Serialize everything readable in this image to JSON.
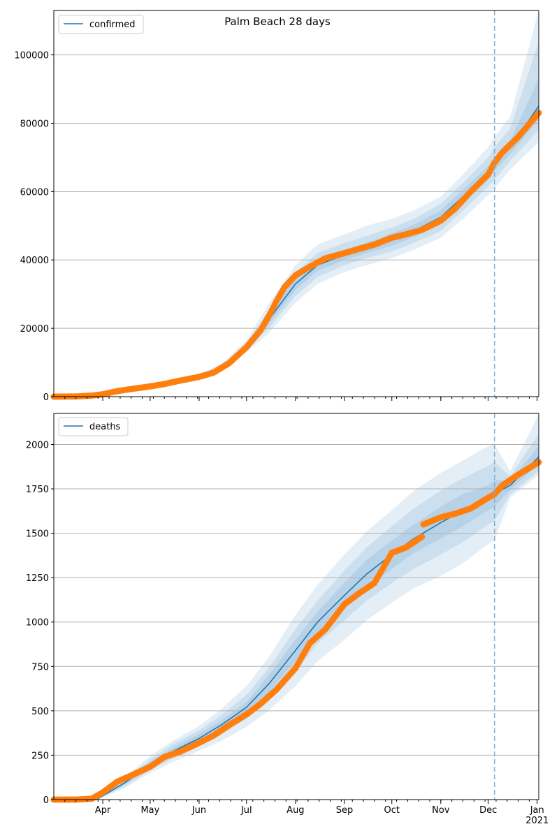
{
  "chart_data": [
    {
      "type": "line",
      "title": "Palm Beach 28 days",
      "legend": {
        "placement": "top-left",
        "entries": [
          "confirmed"
        ]
      },
      "grid": "horizontal",
      "xlim": [
        "2020-03-01",
        "2021-01-02"
      ],
      "ylim": [
        0,
        113000
      ],
      "yticks": [
        0,
        20000,
        40000,
        60000,
        80000,
        100000
      ],
      "xticks": [
        {
          "date": "2020-04-01",
          "label": "Apr"
        },
        {
          "date": "2020-05-01",
          "label": "May"
        },
        {
          "date": "2020-06-01",
          "label": "Jun"
        },
        {
          "date": "2020-07-01",
          "label": "Jul"
        },
        {
          "date": "2020-08-01",
          "label": "Aug"
        },
        {
          "date": "2020-09-01",
          "label": "Sep"
        },
        {
          "date": "2020-10-01",
          "label": "Oct"
        },
        {
          "date": "2020-11-01",
          "label": "Nov"
        },
        {
          "date": "2020-12-01",
          "label": "Dec"
        },
        {
          "date": "2021-01-01",
          "label": "Jan\n2021"
        }
      ],
      "forecast_start": "2020-12-05",
      "model": {
        "x": [
          "2020-03-01",
          "2020-03-29",
          "2020-04-15",
          "2020-05-01",
          "2020-05-15",
          "2020-06-01",
          "2020-06-15",
          "2020-07-01",
          "2020-07-15",
          "2020-08-01",
          "2020-08-15",
          "2020-09-01",
          "2020-09-15",
          "2020-10-01",
          "2020-10-15",
          "2020-11-01",
          "2020-11-15",
          "2020-12-01",
          "2020-12-05",
          "2020-12-15",
          "2021-01-02"
        ],
        "y": [
          0,
          200,
          1800,
          3100,
          4400,
          5800,
          8500,
          14500,
          22500,
          33000,
          38500,
          41500,
          43500,
          46000,
          48500,
          52500,
          58500,
          65500,
          68000,
          73000,
          85000
        ],
        "bands": [
          {
            "lower": [
              0,
              150,
              1500,
              2800,
              4000,
              5200,
              7700,
              13000,
              18500,
              27500,
              33000,
              36500,
              38500,
              40500,
              43000,
              46500,
              52000,
              59000,
              61000,
              66500,
              74500
            ],
            "upper": [
              0,
              300,
              2100,
              3500,
              5000,
              6600,
              9600,
              16500,
              27000,
              38500,
              44500,
              47500,
              50000,
              52000,
              54500,
              58500,
              65000,
              73000,
              76000,
              82000,
              113000
            ]
          },
          {
            "lower": [
              0,
              170,
              1600,
              2900,
              4150,
              5450,
              8000,
              13700,
              20000,
              29500,
              35000,
              38500,
              40500,
              42500,
              45000,
              48500,
              54500,
              61500,
              63500,
              69000,
              78000
            ],
            "upper": [
              0,
              260,
              2000,
              3300,
              4750,
              6300,
              9200,
              15600,
              25200,
              36500,
              42000,
              45000,
              47000,
              49500,
              52000,
              56500,
              62500,
              70000,
              73000,
              78500,
              104000
            ]
          },
          {
            "lower": [
              0,
              185,
              1700,
              3000,
              4250,
              5600,
              8200,
              14100,
              21200,
              31200,
              36800,
              40000,
              42000,
              44200,
              46700,
              50500,
              56500,
              63500,
              66000,
              71000,
              81000
            ],
            "upper": [
              0,
              230,
              1900,
              3200,
              4550,
              6000,
              8800,
              14900,
              23800,
              34800,
              40200,
              43000,
              45000,
              47800,
              50300,
              54500,
              60500,
              67500,
              70000,
              75000,
              93000
            ]
          }
        ]
      },
      "observed": {
        "x": [
          "2020-03-01",
          "2020-03-15",
          "2020-03-25",
          "2020-04-01",
          "2020-04-10",
          "2020-04-20",
          "2020-05-01",
          "2020-05-10",
          "2020-05-20",
          "2020-06-01",
          "2020-06-10",
          "2020-06-20",
          "2020-07-01",
          "2020-07-10",
          "2020-07-15",
          "2020-07-20",
          "2020-07-25",
          "2020-08-01",
          "2020-08-10",
          "2020-08-20",
          "2020-09-01",
          "2020-09-10",
          "2020-09-20",
          "2020-10-01",
          "2020-10-10",
          "2020-10-20",
          "2020-11-01",
          "2020-11-10",
          "2020-11-20",
          "2020-12-01",
          "2020-12-05",
          "2020-12-10",
          "2020-12-20",
          "2021-01-02"
        ],
        "y": [
          0,
          50,
          300,
          700,
          1600,
          2300,
          3000,
          3700,
          4700,
          5800,
          7000,
          9800,
          14500,
          19500,
          23500,
          28000,
          32000,
          35500,
          38000,
          40500,
          42000,
          43200,
          44500,
          46500,
          47500,
          48800,
          51500,
          55000,
          60000,
          65000,
          68500,
          71500,
          76000,
          83000
        ]
      }
    },
    {
      "type": "line",
      "legend": {
        "placement": "top-left",
        "entries": [
          "deaths"
        ]
      },
      "grid": "horizontal",
      "xlim": [
        "2020-03-01",
        "2021-01-02"
      ],
      "ylim": [
        0,
        2175
      ],
      "yticks": [
        0,
        250,
        500,
        750,
        1000,
        1250,
        1500,
        1750,
        2000
      ],
      "forecast_start": "2020-12-05",
      "model": {
        "x": [
          "2020-03-01",
          "2020-03-29",
          "2020-04-15",
          "2020-05-01",
          "2020-05-15",
          "2020-06-01",
          "2020-06-15",
          "2020-07-01",
          "2020-07-15",
          "2020-08-01",
          "2020-08-15",
          "2020-09-01",
          "2020-09-15",
          "2020-10-01",
          "2020-10-15",
          "2020-11-01",
          "2020-11-15",
          "2020-12-01",
          "2020-12-05",
          "2020-12-15",
          "2021-01-02"
        ],
        "y": [
          0,
          5,
          95,
          195,
          270,
          345,
          420,
          520,
          650,
          840,
          1000,
          1150,
          1270,
          1380,
          1470,
          1560,
          1630,
          1700,
          1725,
          1770,
          1930
        ],
        "bands": [
          {
            "lower": [
              0,
              2,
              65,
              150,
              210,
              275,
              330,
              410,
              500,
              640,
              780,
              900,
              1010,
              1110,
              1190,
              1260,
              1330,
              1440,
              1460,
              1700,
              1830
            ],
            "upper": [
              0,
              8,
              125,
              245,
              330,
              415,
              510,
              640,
              800,
              1040,
              1210,
              1380,
              1510,
              1630,
              1740,
              1840,
              1910,
              1990,
              2000,
              1850,
              2170
            ]
          },
          {
            "lower": [
              0,
              3,
              75,
              165,
              230,
              300,
              365,
              455,
              560,
              720,
              880,
              1010,
              1120,
              1220,
              1300,
              1380,
              1450,
              1550,
              1570,
              1720,
              1850
            ],
            "upper": [
              0,
              7,
              115,
              225,
              310,
              390,
              475,
              590,
              740,
              960,
              1120,
              1290,
              1420,
              1540,
              1640,
              1740,
              1810,
              1880,
              1900,
              1820,
              2060
            ]
          },
          {
            "lower": [
              0,
              4,
              85,
              180,
              250,
              320,
              395,
              490,
              600,
              780,
              940,
              1080,
              1190,
              1300,
              1390,
              1470,
              1540,
              1630,
              1650,
              1745,
              1890
            ],
            "upper": [
              0,
              6,
              105,
              210,
              290,
              370,
              445,
              550,
              700,
              900,
              1060,
              1220,
              1350,
              1460,
              1550,
              1650,
              1720,
              1770,
              1800,
              1795,
              1990
            ]
          }
        ]
      },
      "observed": {
        "x": [
          "2020-03-01",
          "2020-03-15",
          "2020-03-25",
          "2020-04-01",
          "2020-04-10",
          "2020-04-20",
          "2020-05-01",
          "2020-05-10",
          "2020-05-20",
          "2020-06-01",
          "2020-06-10",
          "2020-06-20",
          "2020-07-01",
          "2020-07-10",
          "2020-07-20",
          "2020-08-01",
          "2020-08-10",
          "2020-08-20",
          "2020-09-01",
          "2020-09-10",
          "2020-09-20",
          "2020-10-01",
          "2020-10-10",
          "2020-10-20",
          "2020-10-21",
          "2020-11-01",
          "2020-11-10",
          "2020-11-20",
          "2020-12-01",
          "2020-12-05",
          "2020-12-10",
          "2020-12-20",
          "2021-01-02"
        ],
        "y": [
          0,
          0,
          5,
          40,
          100,
          140,
          185,
          240,
          270,
          320,
          360,
          420,
          480,
          540,
          620,
          740,
          880,
          960,
          1100,
          1160,
          1220,
          1390,
          1420,
          1480,
          1550,
          1590,
          1610,
          1640,
          1700,
          1720,
          1770,
          1830,
          1900
        ]
      }
    }
  ],
  "colors": {
    "line": "#1f77b4",
    "observed": "#ff7f0e",
    "band": "#1f77b4",
    "vline": "#7aaed4",
    "grid": "#b0b0b0"
  }
}
